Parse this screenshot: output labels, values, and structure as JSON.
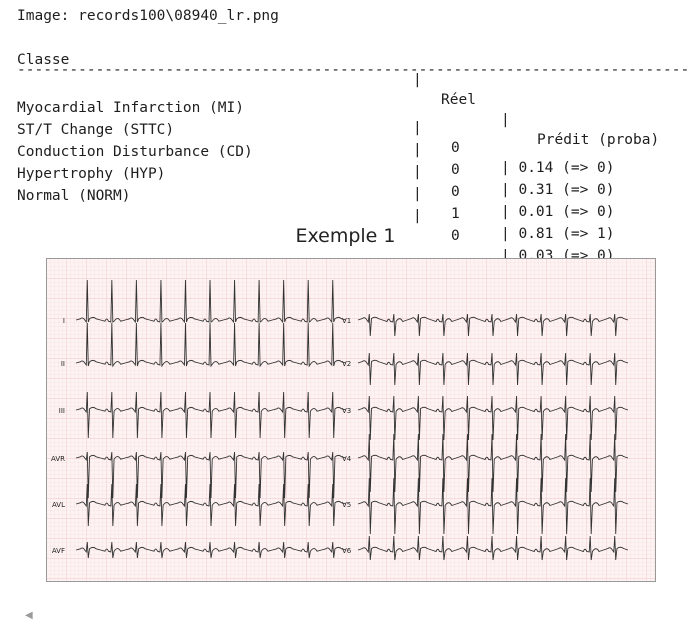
{
  "output": {
    "image_line": "Image: records100\\08940_lr.png",
    "header": {
      "classe": "Classe",
      "sep": "|",
      "reel": "Réel",
      "predit": "Prédit (proba)"
    },
    "divider": "-------------------------------------------------------------------------------------",
    "rows": [
      {
        "classe": "Myocardial Infarction (MI)",
        "reel": "0",
        "predit": "| 0.14 (=> 0)"
      },
      {
        "classe": "ST/T Change (STTC)",
        "reel": "0",
        "predit": "| 0.31 (=> 0)"
      },
      {
        "classe": "Conduction Disturbance (CD)",
        "reel": "0",
        "predit": "| 0.01 (=> 0)"
      },
      {
        "classe": "Hypertrophy (HYP)",
        "reel": "1",
        "predit": "| 0.81 (=> 1)"
      },
      {
        "classe": "Normal (NORM)",
        "reel": "0",
        "predit": "| 0.03 (=> 0)"
      }
    ]
  },
  "figure": {
    "title": "Exemple 1",
    "left_leads": [
      "I",
      "II",
      "III",
      "AVR",
      "AVL",
      "AVF"
    ],
    "right_leads": [
      "V1",
      "V2",
      "V3",
      "V4",
      "V5",
      "V6"
    ],
    "grid_color": "#f3c9c9",
    "background_color": "#fdf3f3",
    "trace_color": "#333333"
  },
  "ui": {
    "collapse_icon": "triangle-left-icon"
  }
}
